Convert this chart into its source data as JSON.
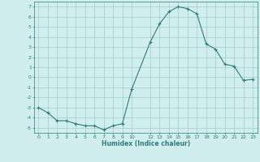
{
  "x": [
    0,
    1,
    2,
    3,
    4,
    5,
    6,
    7,
    8,
    9,
    10,
    12,
    13,
    14,
    15,
    16,
    17,
    18,
    19,
    20,
    21,
    22,
    23
  ],
  "y": [
    -3.0,
    -3.5,
    -4.3,
    -4.3,
    -4.6,
    -4.8,
    -4.8,
    -5.2,
    -4.8,
    -4.6,
    -1.2,
    3.5,
    5.3,
    6.5,
    7.0,
    6.8,
    6.3,
    3.3,
    2.8,
    1.3,
    1.1,
    -0.3,
    -0.2
  ],
  "xlabel": "Humidex (Indice chaleur)",
  "xticks": [
    0,
    1,
    2,
    3,
    4,
    5,
    6,
    7,
    8,
    9,
    10,
    12,
    13,
    14,
    15,
    16,
    17,
    18,
    19,
    20,
    21,
    22,
    23
  ],
  "yticks": [
    -5,
    -4,
    -3,
    -2,
    -1,
    0,
    1,
    2,
    3,
    4,
    5,
    6,
    7
  ],
  "ylim": [
    -5.5,
    7.5
  ],
  "xlim": [
    -0.5,
    23.5
  ],
  "line_color": "#2d7d78",
  "marker": "+",
  "bg_color": "#d0eeee",
  "grid_color": "#a0cccc"
}
